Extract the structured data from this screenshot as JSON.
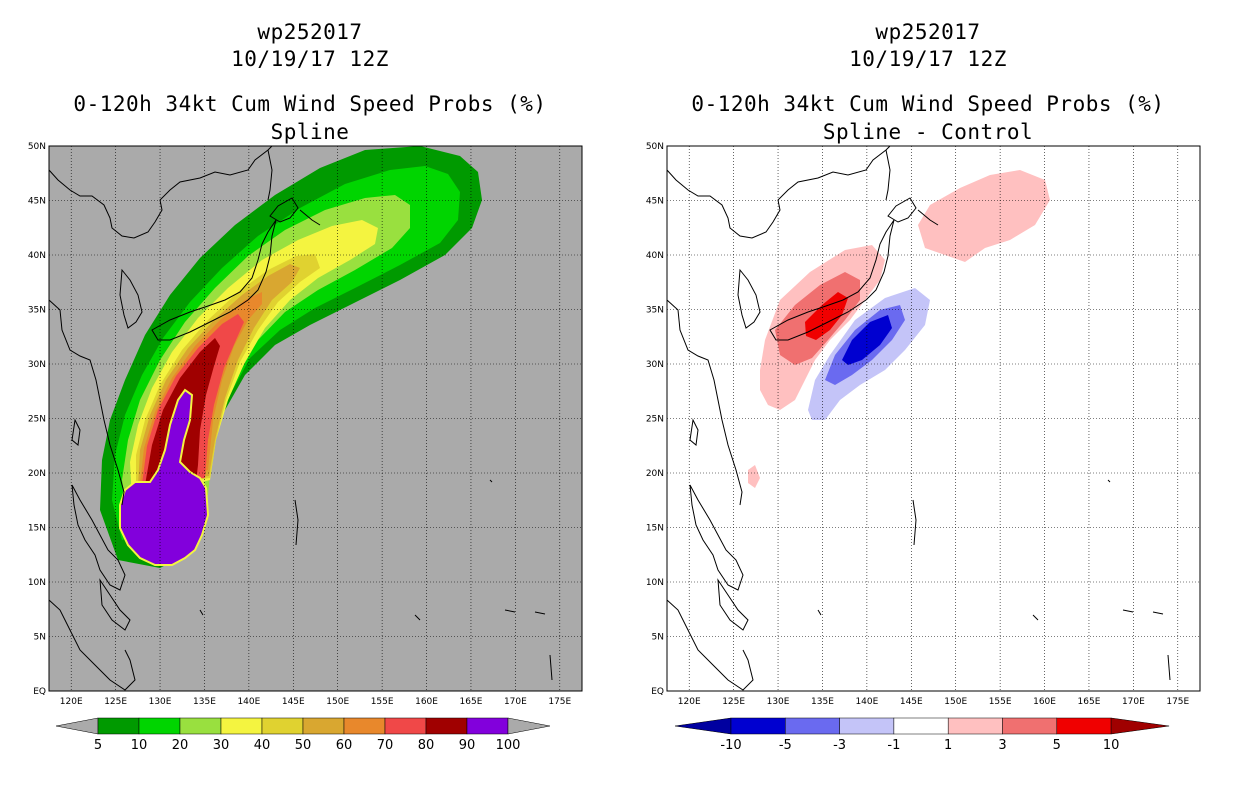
{
  "left_panel": {
    "storm_id": "wp252017",
    "datetime": "10/19/17 12Z",
    "product": "0-120h 34kt Cum Wind Speed Probs (%)",
    "subtitle": "Spline",
    "colorbar": {
      "colors": [
        "#009a00",
        "#00d500",
        "#99e03f",
        "#f4f440",
        "#e0d230",
        "#d9a730",
        "#e8882c",
        "#f04848",
        "#a00000",
        "#8200dc"
      ],
      "labels": [
        "5",
        "10",
        "20",
        "30",
        "40",
        "50",
        "60",
        "70",
        "80",
        "90",
        "100"
      ]
    }
  },
  "right_panel": {
    "storm_id": "wp252017",
    "datetime": "10/19/17 12Z",
    "product": "0-120h 34kt Cum Wind Speed Probs (%)",
    "subtitle": "Spline - Control",
    "colorbar": {
      "colors": [
        "#0000d0",
        "#6a6af0",
        "#c4c4f8",
        "#ffffff",
        "#ffc0c0",
        "#f07070",
        "#f00000"
      ],
      "end_colors": [
        "#0000a0",
        "#a00000"
      ],
      "labels": [
        "-10",
        "-5",
        "-3",
        "-1",
        "1",
        "3",
        "5",
        "10"
      ]
    }
  },
  "map": {
    "lat_labels": [
      "50N",
      "45N",
      "40N",
      "35N",
      "30N",
      "25N",
      "20N",
      "15N",
      "10N",
      "5N",
      "EQ"
    ],
    "lon_labels": [
      "120E",
      "125E",
      "130E",
      "135E",
      "140E",
      "145E",
      "150E",
      "155E",
      "160E",
      "165E",
      "170E",
      "175E"
    ],
    "background_left": "#aaaaaa"
  }
}
